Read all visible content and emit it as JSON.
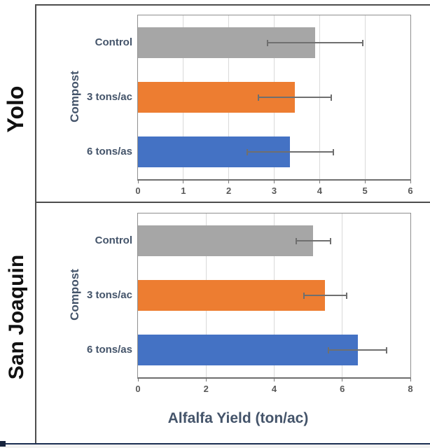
{
  "figure": {
    "x_axis_title": "Alfalfa Yield (ton/ac)"
  },
  "colors": {
    "bar_gray": "#A6A6A6",
    "bar_orange": "#ED7D31",
    "bar_blue": "#4472C4",
    "label_dark_slate": "#44546A",
    "tick_gray": "#595959",
    "gridline": "#D9D9D9",
    "plot_border": "#8F8F8F",
    "error_bar": "#6F6F6F",
    "frame": "#4D4D4D",
    "bottom_edge": "#1C2F52"
  },
  "chart_data": [
    {
      "type": "bar",
      "orientation": "horizontal",
      "group_label": "Yolo",
      "ylabel": "Compost",
      "categories": [
        "Control",
        "3 tons/ac",
        "6 tons/as"
      ],
      "values": [
        3.9,
        3.45,
        3.35
      ],
      "errors_minus": [
        1.05,
        0.8,
        0.95
      ],
      "errors_plus": [
        1.05,
        0.8,
        0.95
      ],
      "bar_colors": [
        "#A6A6A6",
        "#ED7D31",
        "#4472C4"
      ],
      "xlim": [
        0,
        6
      ],
      "xticks": [
        0,
        1,
        2,
        3,
        4,
        5,
        6
      ],
      "grid": true,
      "legend": "none"
    },
    {
      "type": "bar",
      "orientation": "horizontal",
      "group_label": "San Joaquin",
      "ylabel": "Compost",
      "categories": [
        "Control",
        "3 tons/ac",
        "6 tons/as"
      ],
      "values": [
        5.15,
        5.5,
        6.45
      ],
      "errors_minus": [
        0.5,
        0.62,
        0.85
      ],
      "errors_plus": [
        0.5,
        0.62,
        0.85
      ],
      "bar_colors": [
        "#A6A6A6",
        "#ED7D31",
        "#4472C4"
      ],
      "xlim": [
        0,
        8
      ],
      "xticks": [
        0,
        2,
        4,
        6,
        8
      ],
      "grid": true,
      "legend": "none"
    }
  ]
}
